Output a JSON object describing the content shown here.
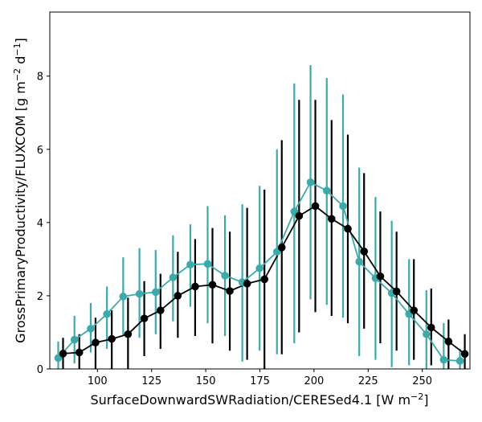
{
  "chart_data": {
    "type": "line",
    "xlabel_main": "SurfaceDownwardSWRadiation/CERESed4.1 [W m",
    "xlabel_sup": "−2",
    "xlabel_end": "]",
    "ylabel_main": "GrossPrimaryProductivity/FLUXCOM [g m",
    "ylabel_sup1": "−2",
    "ylabel_mid": " d",
    "ylabel_sup2": "−1",
    "ylabel_end": "]",
    "xlim": [
      78,
      272
    ],
    "ylim": [
      0,
      9.75
    ],
    "x_ticks": [
      100,
      125,
      150,
      175,
      200,
      225,
      250
    ],
    "y_ticks": [
      0,
      2,
      4,
      6,
      8
    ],
    "x": [
      83,
      90.5,
      98,
      105.5,
      113,
      120.5,
      128,
      136,
      144,
      152,
      160,
      168,
      176,
      184,
      192,
      199.5,
      207,
      214.5,
      222,
      229.5,
      237,
      245,
      253,
      261,
      268.5
    ],
    "series": [
      {
        "color": "#3aabab",
        "values": [
          0.3,
          0.8,
          1.1,
          1.5,
          1.98,
          2.05,
          2.1,
          2.5,
          2.85,
          2.87,
          2.55,
          2.37,
          2.75,
          3.2,
          4.3,
          5.1,
          4.87,
          4.45,
          2.93,
          2.48,
          2.07,
          1.5,
          0.95,
          0.25,
          0.22
        ],
        "err_low": [
          0.0,
          0.15,
          0.45,
          0.55,
          0.9,
          0.85,
          0.95,
          1.3,
          1.7,
          1.25,
          0.9,
          0.2,
          0.5,
          0.4,
          0.7,
          1.9,
          1.75,
          1.4,
          0.35,
          0.25,
          0.05,
          0.1,
          0.0,
          0.0,
          0.0
        ],
        "err_high": [
          0.75,
          1.45,
          1.8,
          2.25,
          3.05,
          3.3,
          3.25,
          3.65,
          3.95,
          4.45,
          4.2,
          4.5,
          5.0,
          6.0,
          7.8,
          8.3,
          7.95,
          7.5,
          5.5,
          4.7,
          4.05,
          3.0,
          2.15,
          1.25,
          0.55
        ]
      },
      {
        "color": "#000000",
        "values": [
          0.42,
          0.45,
          0.72,
          0.82,
          0.95,
          1.38,
          1.6,
          2.0,
          2.25,
          2.3,
          2.13,
          2.33,
          2.45,
          3.32,
          4.18,
          4.45,
          4.1,
          3.83,
          3.21,
          2.53,
          2.12,
          1.6,
          1.13,
          0.75,
          0.41
        ],
        "err_low": [
          0.0,
          0.0,
          0.0,
          0.0,
          0.0,
          0.35,
          0.55,
          0.85,
          0.9,
          0.7,
          0.5,
          0.25,
          0.0,
          0.4,
          1.0,
          1.55,
          1.45,
          1.25,
          1.1,
          0.7,
          0.5,
          0.25,
          0.1,
          0.0,
          0.0
        ],
        "err_high": [
          0.85,
          0.95,
          1.4,
          1.6,
          1.95,
          2.4,
          2.6,
          3.2,
          3.55,
          3.85,
          3.75,
          4.4,
          4.9,
          6.25,
          7.35,
          7.35,
          6.8,
          6.4,
          5.35,
          4.3,
          3.75,
          3.0,
          2.2,
          1.35,
          0.95
        ]
      }
    ],
    "grid": false,
    "legend": "none"
  }
}
